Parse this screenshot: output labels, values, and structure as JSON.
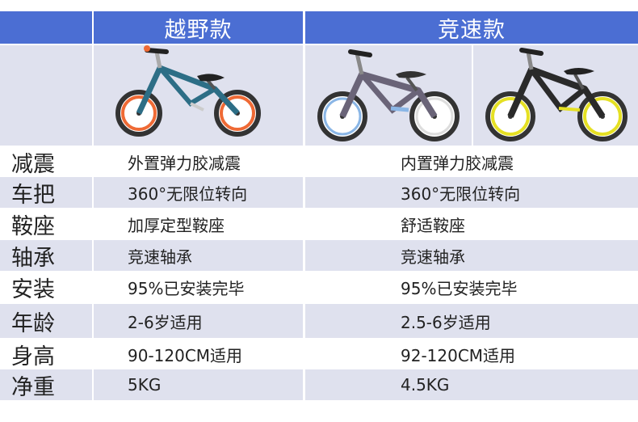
{
  "header": {
    "col1_title": "越野款",
    "col2_title": "竞速款"
  },
  "bikes": [
    {
      "icon": "offroad-balance-bike",
      "frame_color": "#2d6e86",
      "rim_color": "#ef6a35",
      "brand_text": ""
    },
    {
      "icon": "racing-balance-bike-purple",
      "frame_color": "#6a6478",
      "rim_color": "#8ab6e6",
      "brand_text": ""
    },
    {
      "icon": "racing-balance-bike-black",
      "frame_color": "#2a2a2a",
      "rim_color": "#e5e023",
      "brand_text": ""
    }
  ],
  "rows": [
    {
      "label": "减震",
      "col1": "外置弹力胶减震",
      "col2": "内置弹力胶减震"
    },
    {
      "label": "车把",
      "col1": "360°无限位转向",
      "col2": "360°无限位转向"
    },
    {
      "label": "鞍座",
      "col1": "加厚定型鞍座",
      "col2": "舒适鞍座"
    },
    {
      "label": "轴承",
      "col1": "竞速轴承",
      "col2": "竞速轴承"
    },
    {
      "label": "安装",
      "col1": "95%已安装完毕",
      "col2": "95%已安装完毕"
    },
    {
      "label": "年龄",
      "col1": "2-6岁适用",
      "col2": "2.5-6岁适用"
    },
    {
      "label": "身高",
      "col1": "90-120CM适用",
      "col2": "92-120CM适用"
    },
    {
      "label": "净重",
      "col1": "5KG",
      "col2": "4.5KG"
    }
  ],
  "colors": {
    "header_bg": "#4b6ed3",
    "shade_bg": "#dfe1ee",
    "text": "#222222"
  }
}
